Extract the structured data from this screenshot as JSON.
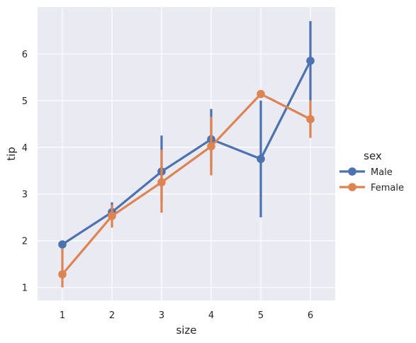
{
  "chart_data": {
    "type": "line",
    "xlabel": "size",
    "ylabel": "tip",
    "categories": [
      "1",
      "2",
      "3",
      "4",
      "5",
      "6"
    ],
    "ylim": [
      0.72,
      7.0
    ],
    "yticks": [
      1,
      2,
      3,
      4,
      5,
      6
    ],
    "grid": true,
    "legend": {
      "title": "sex",
      "placement": "right"
    },
    "series": [
      {
        "name": "Male",
        "color": "#4c72b0",
        "values": [
          1.92,
          2.61,
          3.48,
          4.17,
          3.75,
          5.85
        ],
        "ci": [
          [
            1.92,
            1.92
          ],
          [
            2.45,
            2.82
          ],
          [
            2.85,
            4.25
          ],
          [
            3.55,
            4.82
          ],
          [
            2.5,
            5.0
          ],
          [
            5.0,
            6.7
          ]
        ]
      },
      {
        "name": "Female",
        "color": "#dd8452",
        "values": [
          1.28,
          2.53,
          3.25,
          4.02,
          5.14,
          4.6
        ],
        "ci": [
          [
            1.0,
            1.83
          ],
          [
            2.28,
            2.77
          ],
          [
            2.6,
            3.95
          ],
          [
            3.4,
            4.65
          ],
          [
            5.14,
            5.14
          ],
          [
            4.2,
            5.0
          ]
        ]
      }
    ]
  }
}
